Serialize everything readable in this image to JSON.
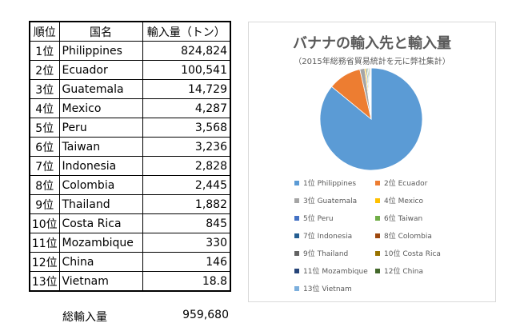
{
  "table": {
    "header": {
      "rank": "順位",
      "country": "国名",
      "imports": "輸入量（トン）"
    },
    "rows": [
      {
        "rank": "1位",
        "country": "Philippines",
        "value": "824,824"
      },
      {
        "rank": "2位",
        "country": "Ecuador",
        "value": "100,541"
      },
      {
        "rank": "3位",
        "country": "Guatemala",
        "value": "14,729"
      },
      {
        "rank": "4位",
        "country": "Mexico",
        "value": "4,287"
      },
      {
        "rank": "5位",
        "country": "Peru",
        "value": "3,568"
      },
      {
        "rank": "6位",
        "country": "Taiwan",
        "value": "3,236"
      },
      {
        "rank": "7位",
        "country": "Indonesia",
        "value": "2,828"
      },
      {
        "rank": "8位",
        "country": "Colombia",
        "value": "2,445"
      },
      {
        "rank": "9位",
        "country": "Thailand",
        "value": "1,882"
      },
      {
        "rank": "10位",
        "country": "Costa Rica",
        "value": "845"
      },
      {
        "rank": "11位",
        "country": "Mozambique",
        "value": "330"
      },
      {
        "rank": "12位",
        "country": "China",
        "value": "146"
      },
      {
        "rank": "13位",
        "country": "Vietnam",
        "value": "18.8"
      }
    ],
    "total_label": "総輸入量",
    "total_value": "959,680"
  },
  "chart_data": {
    "type": "pie",
    "title": "バナナの輸入先と輸入量",
    "subtitle": "（2015年総務省貿易統計を元に弊社集計）",
    "categories": [
      "1位 Philippines",
      "2位 Ecuador",
      "3位 Guatemala",
      "4位 Mexico",
      "5位 Peru",
      "6位 Taiwan",
      "7位 Indonesia",
      "8位 Colombia",
      "9位 Thailand",
      "10位 Costa Rica",
      "11位 Mozambique",
      "12位 China",
      "13位 Vietnam"
    ],
    "values": [
      824824,
      100541,
      14729,
      4287,
      3568,
      3236,
      2828,
      2445,
      1882,
      845,
      330,
      146,
      18.8
    ],
    "colors": [
      "#5b9bd5",
      "#ed7d31",
      "#a5a5a5",
      "#ffc000",
      "#4472c4",
      "#70ad47",
      "#255e91",
      "#9e480e",
      "#636363",
      "#997300",
      "#264478",
      "#43682b",
      "#7cafdd"
    ],
    "legend_position": "bottom"
  }
}
